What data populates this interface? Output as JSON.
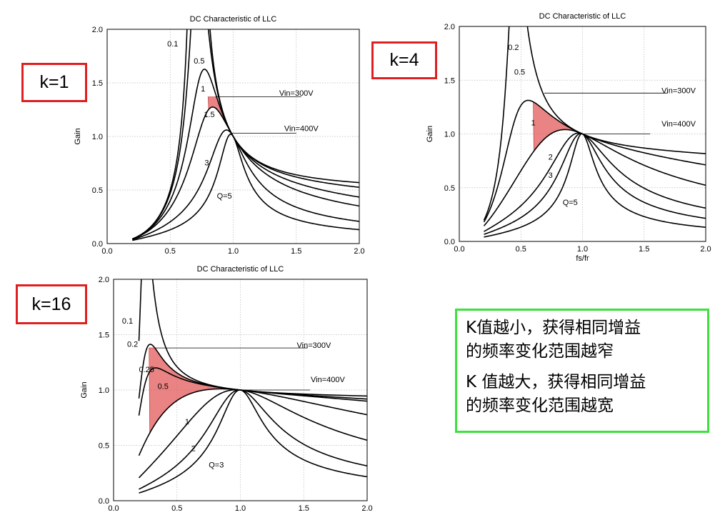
{
  "colors": {
    "curve": "#000000",
    "highlight": "#e35a5a",
    "klabel_border": "#e02020",
    "note_border": "#3ee03e"
  },
  "chart_data": [
    {
      "type": "line",
      "title": "DC Characteristic of LLC",
      "xlabel": "",
      "ylabel": "Gain",
      "xlim": [
        0,
        2
      ],
      "ylim": [
        0,
        2
      ],
      "xticks": [
        "0.0",
        "0.5",
        "1.0",
        "1.5",
        "2.0"
      ],
      "yticks": [
        "0.0",
        "0.5",
        "1.0",
        "1.5",
        "2.0"
      ],
      "grid": true,
      "k": 1,
      "series_labels": [
        "0.1",
        "0.5",
        "1",
        "1.5",
        "3",
        "Q=5"
      ],
      "Q_values": [
        0.1,
        0.5,
        1,
        1.5,
        3,
        5
      ],
      "annotations": [
        "Vin=300V",
        "Vin=400V"
      ],
      "vin300_gain": 1.37,
      "vin400_gain": 1.03,
      "x_range": [
        0.2,
        2.0
      ],
      "badge": "k=1"
    },
    {
      "type": "line",
      "title": "DC Characteristic of LLC",
      "xlabel": "fs/fr",
      "ylabel": "Gain",
      "xlim": [
        0,
        2
      ],
      "ylim": [
        0,
        2
      ],
      "xticks": [
        "0.0",
        "0.5",
        "1.0",
        "1.5",
        "2.0"
      ],
      "yticks": [
        "0.0",
        "0.5",
        "1.0",
        "1.5",
        "2.0"
      ],
      "grid": true,
      "k": 4,
      "series_labels": [
        "0.2",
        "0.5",
        "1",
        "2",
        "3",
        "Q=5"
      ],
      "Q_values": [
        0.2,
        0.5,
        1,
        2,
        3,
        5
      ],
      "annotations": [
        "Vin=300V",
        "Vin=400V"
      ],
      "vin300_gain": 1.38,
      "vin400_gain": 1.0,
      "x_range": [
        0.2,
        2.0
      ],
      "badge": "k=4"
    },
    {
      "type": "line",
      "title": "DC Characteristic of LLC",
      "xlabel": "",
      "ylabel": "Gain",
      "xlim": [
        0,
        2
      ],
      "ylim": [
        0,
        2
      ],
      "xticks": [
        "0.0",
        "0.5",
        "1.0",
        "1.5",
        "2.0"
      ],
      "yticks": [
        "0.0",
        "0.5",
        "1.0",
        "1.5",
        "2.0"
      ],
      "grid": true,
      "k": 16,
      "series_labels": [
        "0.1",
        "0.2",
        "0.25",
        "0.5",
        "1",
        "2",
        "Q=3"
      ],
      "Q_values": [
        0.1,
        0.2,
        0.25,
        0.5,
        1,
        2,
        3
      ],
      "annotations": [
        "Vin=300V",
        "Vin=400V"
      ],
      "vin300_gain": 1.38,
      "vin400_gain": 1.0,
      "x_range": [
        0.2,
        2.0
      ],
      "badge": "k=16"
    }
  ],
  "note": {
    "line1": "K值越小，获得相同增益",
    "line2": "的频率变化范围越窄",
    "line3": "K 值越大，获得相同增益",
    "line4": "的频率变化范围越宽"
  }
}
